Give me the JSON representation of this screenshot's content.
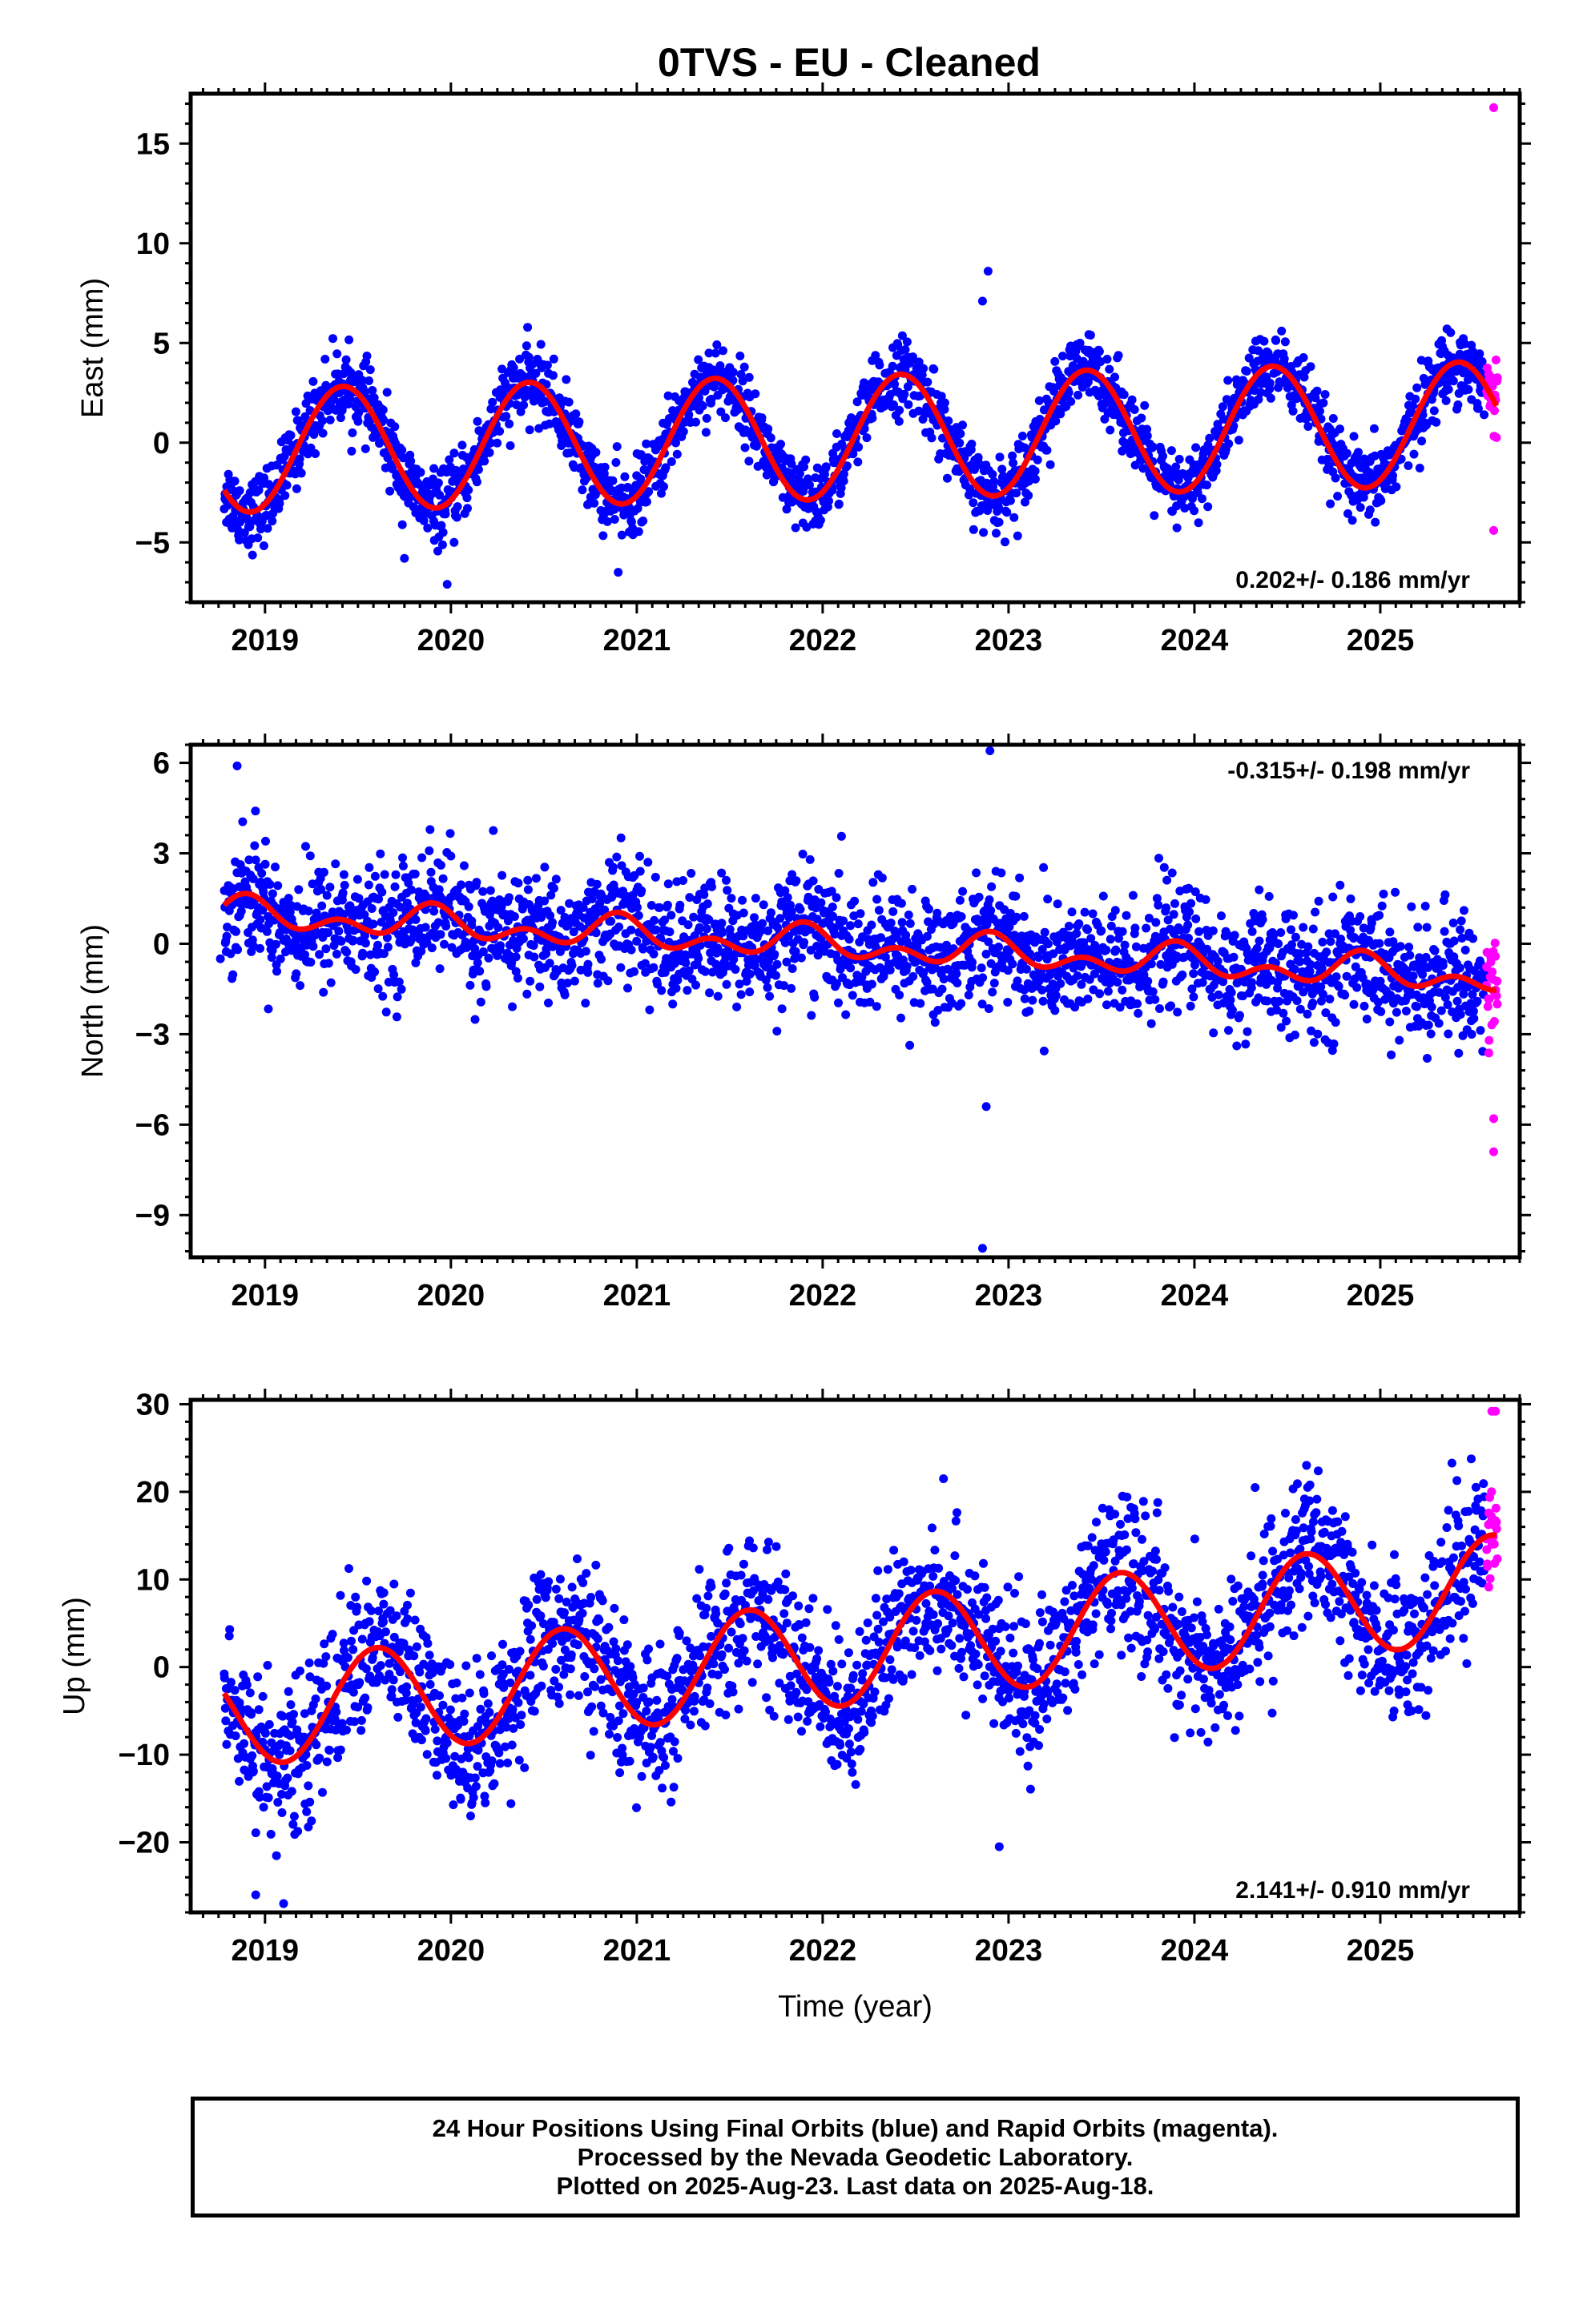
{
  "title": "0TVS  - EU - Cleaned",
  "footer": {
    "line1": "24 Hour Positions Using Final Orbits (blue) and Rapid Orbits (magenta).",
    "line2": "Processed by the Nevada Geodetic Laboratory.",
    "line3": "Plotted on 2025-Aug-23. Last data on 2025-Aug-18."
  },
  "colors": {
    "final": "#0000ff",
    "rapid": "#ff00ff",
    "model": "#ff0000"
  },
  "chart_data": [
    {
      "type": "scatter",
      "ylabel": "East (mm)",
      "rate_label": "0.202+/- 0.186 mm/yr",
      "rate_position": "bottom-right",
      "xlim": [
        2018.6,
        2025.75
      ],
      "ylim": [
        -8,
        17.5
      ],
      "xticks": [
        "2019",
        "2020",
        "2021",
        "2022",
        "2023",
        "2024",
        "2025"
      ],
      "yticks": [
        -5,
        0,
        5,
        10,
        15
      ],
      "model": {
        "trend_rate": 0.202,
        "offset": -0.4,
        "annual_amplitude": 3.1,
        "annual_peak": 0.42
      },
      "series": [
        {
          "name": "Final Orbits",
          "start": 2018.78,
          "end": 2025.56,
          "count": 2300,
          "noise": 0.9
        },
        {
          "name": "Rapid Orbits",
          "start": 2025.57,
          "end": 2025.63,
          "count": 24,
          "noise": 0.9
        }
      ],
      "outliers": [
        [
          2022.89,
          8.6
        ],
        [
          2022.86,
          7.1
        ],
        [
          2019.75,
          -5.8
        ],
        [
          2020.9,
          -6.5
        ],
        [
          2019.98,
          -7.1
        ],
        [
          2025.61,
          16.8
        ],
        [
          2025.61,
          -4.4
        ]
      ]
    },
    {
      "type": "scatter",
      "ylabel": "North (mm)",
      "rate_label": "-0.315+/- 0.198 mm/yr",
      "rate_position": "top-right",
      "xlim": [
        2018.6,
        2025.75
      ],
      "ylim": [
        -10.4,
        6.6
      ],
      "xticks": [
        "2019",
        "2020",
        "2021",
        "2022",
        "2023",
        "2024",
        "2025"
      ],
      "yticks": [
        -9,
        -6,
        -3,
        0,
        3,
        6
      ],
      "model": {
        "trend_rate": -0.315,
        "offset": 1.0,
        "annual_amplitude": 0.35,
        "annual_peak": 0.9,
        "semiannual_amplitude": 0.35
      },
      "series": [
        {
          "name": "Final Orbits",
          "start": 2018.78,
          "end": 2025.56,
          "count": 2300,
          "noise": 1.0
        },
        {
          "name": "Rapid Orbits",
          "start": 2025.57,
          "end": 2025.63,
          "count": 24,
          "noise": 1.0
        }
      ],
      "outliers": [
        [
          2018.76,
          -0.5
        ],
        [
          2022.9,
          6.4
        ],
        [
          2022.88,
          -5.4
        ],
        [
          2022.86,
          -10.1
        ],
        [
          2025.61,
          -6.9
        ],
        [
          2025.61,
          -5.8
        ],
        [
          2018.85,
          5.9
        ]
      ]
    },
    {
      "type": "scatter",
      "ylabel": "Up (mm)",
      "xlabel": "Time (year)",
      "rate_label": "2.141+/- 0.910 mm/yr",
      "rate_position": "bottom-right",
      "xlim": [
        2018.6,
        2025.75
      ],
      "ylim": [
        -28,
        30.5
      ],
      "xticks": [
        "2019",
        "2020",
        "2021",
        "2022",
        "2023",
        "2024",
        "2025"
      ],
      "yticks": [
        -20,
        -10,
        0,
        10,
        20,
        30
      ],
      "model": {
        "trend_rate": 2.141,
        "offset": -5.5,
        "annual_amplitude": 6.0,
        "annual_peak": 0.6
      },
      "series": [
        {
          "name": "Final Orbits",
          "start": 2018.78,
          "end": 2025.56,
          "count": 2300,
          "noise": 4.2
        },
        {
          "name": "Rapid Orbits",
          "start": 2025.57,
          "end": 2025.63,
          "count": 24,
          "noise": 3.0
        }
      ],
      "outliers": [
        [
          2018.95,
          -26
        ],
        [
          2019.1,
          -27
        ],
        [
          2022.95,
          -20.5
        ],
        [
          2025.6,
          29.2
        ],
        [
          2025.62,
          29.2
        ],
        [
          2022.65,
          21.5
        ]
      ]
    }
  ]
}
